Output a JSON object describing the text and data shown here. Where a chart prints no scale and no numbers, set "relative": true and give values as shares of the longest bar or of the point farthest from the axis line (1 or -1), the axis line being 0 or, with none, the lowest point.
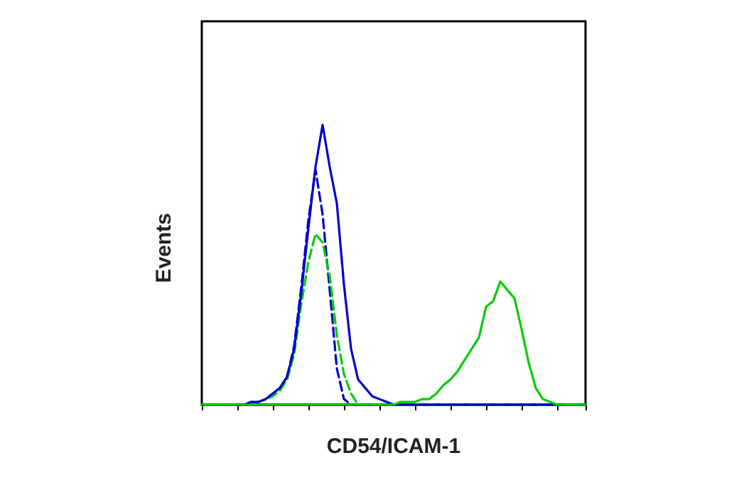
{
  "chart_data": {
    "type": "line",
    "relative": true,
    "xlabel": "CD54/ICAM-1",
    "ylabel": "Events",
    "grid": false,
    "categories": [
      null,
      null,
      null,
      null,
      null,
      null,
      null,
      null,
      null,
      null,
      null,
      null,
      null,
      null,
      null,
      null,
      null,
      null,
      null,
      null,
      null,
      null,
      null,
      null,
      null,
      null,
      null,
      null,
      null,
      null,
      null,
      null,
      null,
      null,
      null,
      null,
      null,
      null,
      null,
      null,
      null,
      null,
      null,
      null,
      null,
      null,
      null,
      null,
      null,
      null,
      null,
      null,
      null,
      null,
      null
    ],
    "series": [
      {
        "color": "#0000cc",
        "line_style": "dashed",
        "values": [
          null,
          null,
          null,
          null,
          0,
          0,
          0,
          0.01,
          0.01,
          0.02,
          0.04,
          0.06,
          0.1,
          0.21,
          0.42,
          0.66,
          0.84,
          0.68,
          0.41,
          0.13,
          0.02,
          0,
          0,
          0,
          0,
          0,
          0,
          0,
          0,
          0,
          0,
          0,
          0,
          0,
          0,
          0,
          0,
          0,
          0,
          0,
          0,
          0,
          0,
          0,
          0,
          0,
          0,
          0,
          0,
          0,
          0,
          0,
          0,
          null,
          null
        ]
      },
      {
        "color": "#00cc00",
        "line_style": "dashed",
        "values": [
          0,
          0,
          0,
          0,
          0,
          0,
          0,
          0,
          0.01,
          0.02,
          0.03,
          0.05,
          0.09,
          0.18,
          0.36,
          0.51,
          0.61,
          0.58,
          0.46,
          0.25,
          0.11,
          0.04,
          0,
          0,
          0,
          0,
          0,
          0,
          0,
          0,
          0,
          0,
          0,
          0,
          0,
          0,
          0,
          0,
          0,
          0,
          0,
          0,
          0,
          0,
          0,
          0,
          0,
          0,
          0,
          0,
          0,
          0,
          0,
          0,
          0
        ]
      },
      {
        "color": "#0000cc",
        "line_style": "solid",
        "values": [
          null,
          null,
          null,
          null,
          null,
          0,
          0,
          0.01,
          0.01,
          0.02,
          0.04,
          0.06,
          0.1,
          0.2,
          0.4,
          0.63,
          0.85,
          1,
          0.85,
          0.72,
          0.43,
          0.2,
          0.09,
          0.06,
          0.03,
          0.02,
          0.01,
          0,
          0,
          0,
          0,
          0,
          0,
          0,
          0,
          0,
          0,
          0,
          0,
          0,
          0,
          0,
          0,
          0,
          0,
          0,
          0,
          0,
          0,
          0,
          0,
          0,
          null,
          null,
          null
        ]
      },
      {
        "color": "#00cc00",
        "line_style": "solid",
        "values": [
          0,
          0,
          0,
          0,
          0,
          0,
          0,
          0,
          0,
          0,
          0,
          0,
          0,
          0,
          0,
          0,
          0,
          0,
          0,
          0,
          0,
          0,
          0,
          0,
          0,
          0,
          0,
          0,
          0.01,
          0.01,
          0.01,
          0.02,
          0.02,
          0.04,
          0.07,
          0.09,
          0.12,
          0.16,
          0.2,
          0.24,
          0.35,
          0.37,
          0.44,
          0.41,
          0.38,
          0.27,
          0.15,
          0.06,
          0.02,
          0.01,
          0,
          0,
          0,
          0,
          0
        ]
      }
    ]
  }
}
